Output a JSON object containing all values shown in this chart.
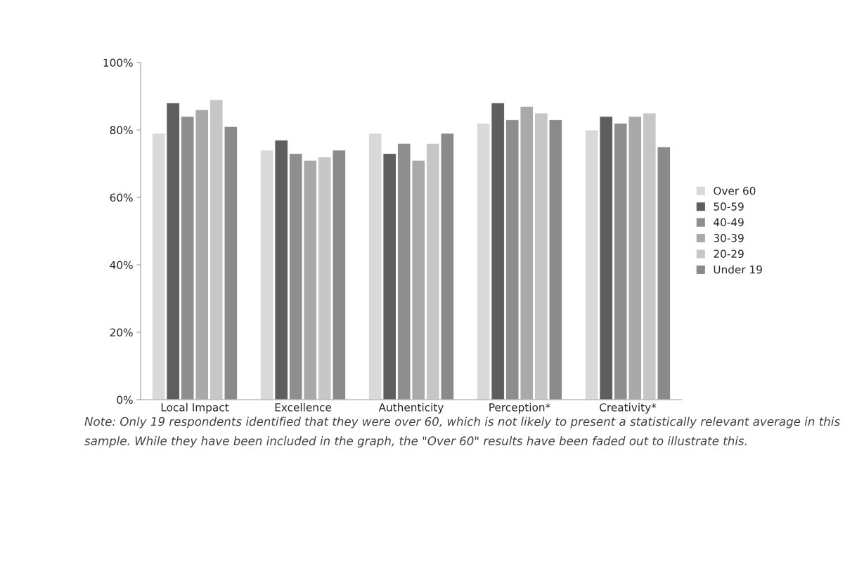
{
  "chart_data": {
    "type": "bar",
    "categories": [
      "Local Impact",
      "Excellence",
      "Authenticity",
      "Perception*",
      "Creativity*"
    ],
    "series": [
      {
        "name": "Over 60",
        "color": "#d9d9d9",
        "values": [
          79,
          74,
          79,
          82,
          80
        ]
      },
      {
        "name": "50-59",
        "color": "#5e5e5e",
        "values": [
          88,
          77,
          73,
          88,
          84
        ]
      },
      {
        "name": "40-49",
        "color": "#8e8e8e",
        "values": [
          84,
          73,
          76,
          83,
          82
        ]
      },
      {
        "name": "30-39",
        "color": "#a9a9a9",
        "values": [
          86,
          71,
          71,
          87,
          84
        ]
      },
      {
        "name": "20-29",
        "color": "#c6c6c6",
        "values": [
          89,
          72,
          76,
          85,
          85
        ]
      },
      {
        "name": "Under 19",
        "color": "#8a8a8a",
        "values": [
          81,
          74,
          79,
          83,
          75
        ]
      }
    ],
    "ylim": [
      0,
      100
    ],
    "yticks": [
      {
        "value": 0,
        "label": "0%"
      },
      {
        "value": 20,
        "label": "20%"
      },
      {
        "value": 40,
        "label": "40%"
      },
      {
        "value": 60,
        "label": "60%"
      },
      {
        "value": 80,
        "label": "80%"
      },
      {
        "value": 100,
        "label": "100%"
      }
    ],
    "grid": false,
    "legend": "right",
    "annotations": [
      "Note: Only 19 respondents identified that they were over 60, which is not likely to present a statistically relevant average in this sample. While they have been included in the graph, the \"Over 60\" results have been faded out to illustrate this."
    ]
  }
}
